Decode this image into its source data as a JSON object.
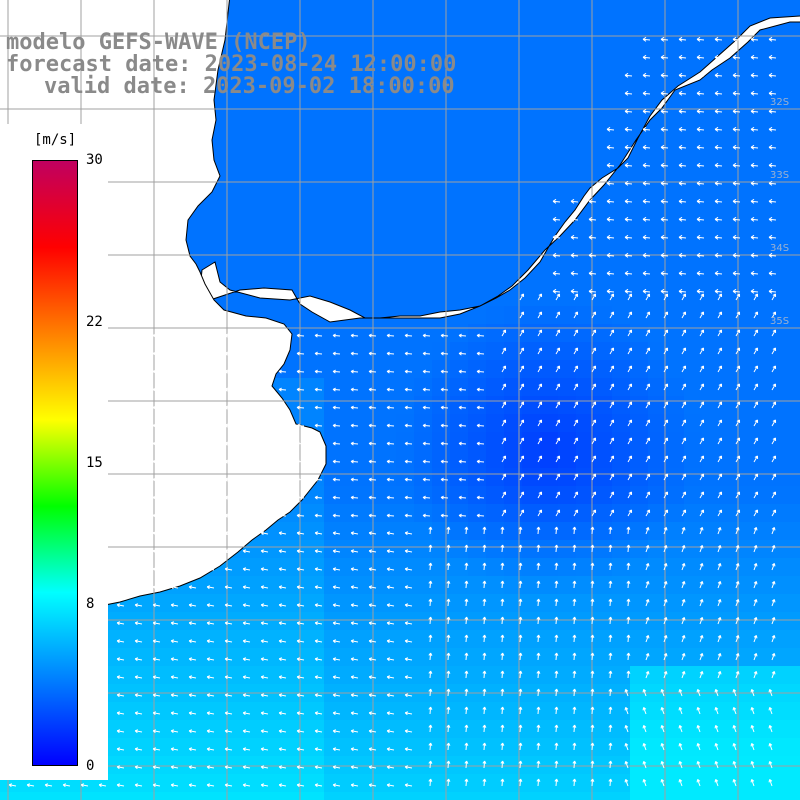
{
  "title": {
    "line1": "modelo GEFS-WAVE (NCEP)",
    "line2": "forecast date: 2023-08-24 12:00:00",
    "line3": "valid date: 2023-09-02 18:00:00"
  },
  "colorbar": {
    "unit": "[m/s]",
    "ticks": [
      "30",
      "22",
      "15",
      "8",
      "0"
    ],
    "tick_values": [
      30,
      22,
      15,
      8,
      0
    ],
    "range": [
      0,
      30
    ],
    "colors": [
      "#0000ff",
      "#0080ff",
      "#00ffff",
      "#00ff00",
      "#ffff00",
      "#ff8000",
      "#ff0000",
      "#c00060"
    ]
  },
  "map": {
    "lat_labels": [
      "32S",
      "33S",
      "34S",
      "35S"
    ],
    "land_color": "#ffffff",
    "coast_color": "#000000",
    "grid_color": "#a0a0a0",
    "arrow_color": "#ffffff"
  }
}
